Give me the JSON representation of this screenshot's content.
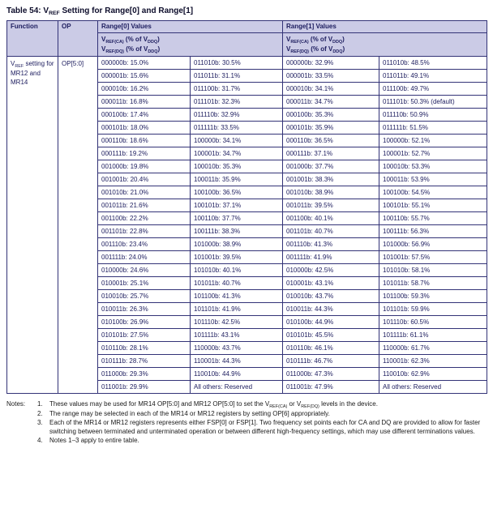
{
  "title": {
    "segments": [
      {
        "t": "Table 54: V"
      },
      {
        "sub": "REF"
      },
      {
        "t": " Setting for Range[0] and Range[1]"
      }
    ]
  },
  "colors": {
    "header_bg": "#cbcbe6",
    "border": "#333377",
    "table_text": "#1c1c5e",
    "notes_text": "#1a1a1a",
    "title_text": "#0d0d2b"
  },
  "table": {
    "headers": {
      "function": "Function",
      "op": "OP",
      "range0": "Range[0] Values",
      "range1": "Range[1] Values",
      "sub_line1": [
        {
          "t": "V"
        },
        {
          "sub": "REF(CA)"
        },
        {
          "t": " (% of V"
        },
        {
          "sub": "DDQ"
        },
        {
          "t": ")"
        }
      ],
      "sub_line2": [
        {
          "t": "V"
        },
        {
          "sub": "REF(DQ)"
        },
        {
          "t": " (% of V"
        },
        {
          "sub": "DDQ"
        },
        {
          "t": ")"
        }
      ]
    },
    "function_cell": [
      {
        "t": "V"
      },
      {
        "sub": "REF"
      },
      {
        "t": " setting for MR12 and MR14"
      }
    ],
    "op_cell": "OP[5:0]",
    "rows": [
      [
        "000000b: 15.0%",
        "011010b: 30.5%",
        "000000b: 32.9%",
        "011010b: 48.5%"
      ],
      [
        "000001b: 15.6%",
        "011011b: 31.1%",
        "000001b: 33.5%",
        "011011b: 49.1%"
      ],
      [
        "000010b: 16.2%",
        "011100b: 31.7%",
        "000010b: 34.1%",
        "011100b: 49.7%"
      ],
      [
        "000011b: 16.8%",
        "011101b: 32.3%",
        "000011b: 34.7%",
        "011101b: 50.3% (default)"
      ],
      [
        "000100b: 17.4%",
        "011110b: 32.9%",
        "000100b: 35.3%",
        "011110b: 50.9%"
      ],
      [
        "000101b: 18.0%",
        "011111b: 33.5%",
        "000101b: 35.9%",
        "011111b: 51.5%"
      ],
      [
        "000110b: 18.6%",
        "100000b: 34.1%",
        "000110b: 36.5%",
        "100000b: 52.1%"
      ],
      [
        "000111b: 19.2%",
        "100001b: 34.7%",
        "000111b: 37.1%",
        "100001b: 52.7%"
      ],
      [
        "001000b: 19.8%",
        "100010b: 35.3%",
        "001000b: 37.7%",
        "100010b: 53.3%"
      ],
      [
        "001001b: 20.4%",
        "100011b: 35.9%",
        "001001b: 38.3%",
        "100011b: 53.9%"
      ],
      [
        "001010b: 21.0%",
        "100100b: 36.5%",
        "001010b: 38.9%",
        "100100b: 54.5%"
      ],
      [
        "001011b: 21.6%",
        "100101b: 37.1%",
        "001011b: 39.5%",
        "100101b: 55.1%"
      ],
      [
        "001100b: 22.2%",
        "100110b: 37.7%",
        "001100b: 40.1%",
        "100110b: 55.7%"
      ],
      [
        "001101b: 22.8%",
        "100111b: 38.3%",
        "001101b: 40.7%",
        "100111b: 56.3%"
      ],
      [
        "001110b: 23.4%",
        "101000b: 38.9%",
        "001110b: 41.3%",
        "101000b: 56.9%"
      ],
      [
        "001111b: 24.0%",
        "101001b: 39.5%",
        "001111b: 41.9%",
        "101001b: 57.5%"
      ],
      [
        "010000b: 24.6%",
        "101010b: 40.1%",
        "010000b: 42.5%",
        "101010b: 58.1%"
      ],
      [
        "010001b: 25.1%",
        "101011b: 40.7%",
        "010001b: 43.1%",
        "101011b: 58.7%"
      ],
      [
        "010010b: 25.7%",
        "101100b: 41.3%",
        "010010b: 43.7%",
        "101100b: 59.3%"
      ],
      [
        "010011b: 26.3%",
        "101101b: 41.9%",
        "010011b: 44.3%",
        "101101b: 59.9%"
      ],
      [
        "010100b: 26.9%",
        "101110b: 42.5%",
        "010100b: 44.9%",
        "101110b: 60.5%"
      ],
      [
        "010101b: 27.5%",
        "101111b: 43.1%",
        "010101b: 45.5%",
        "101111b: 61.1%"
      ],
      [
        "010110b: 28.1%",
        "110000b: 43.7%",
        "010110b: 46.1%",
        "110000b: 61.7%"
      ],
      [
        "010111b: 28.7%",
        "110001b: 44.3%",
        "010111b: 46.7%",
        "110001b: 62.3%"
      ],
      [
        "011000b: 29.3%",
        "110010b: 44.9%",
        "011000b: 47.3%",
        "110010b: 62.9%"
      ],
      [
        "011001b: 29.9%",
        "All others: Reserved",
        "011001b: 47.9%",
        "All others: Reserved"
      ]
    ]
  },
  "notes": {
    "label": "Notes:",
    "items": [
      {
        "num": "1.",
        "segments": [
          {
            "t": "These values may be used for MR14 OP[5:0] and MR12 OP[5:0] to set the V"
          },
          {
            "sub": "REF(CA)"
          },
          {
            "t": " or V"
          },
          {
            "sub": "REF(DQ)"
          },
          {
            "t": " levels in the device."
          }
        ]
      },
      {
        "num": "2.",
        "segments": [
          {
            "t": "The range may be selected in each of the MR14 or MR12 registers by setting OP[6] appropriately."
          }
        ]
      },
      {
        "num": "3.",
        "segments": [
          {
            "t": "Each of the MR14 or MR12 registers represents either FSP[0] or FSP[1]. Two frequency set points each for CA and DQ are provided to allow for faster switching between terminated and unterminated operation or between different high-frequency settings, which may use different terminations values."
          }
        ]
      },
      {
        "num": "4.",
        "segments": [
          {
            "t": "Notes 1–3 apply to entire table."
          }
        ]
      }
    ]
  }
}
